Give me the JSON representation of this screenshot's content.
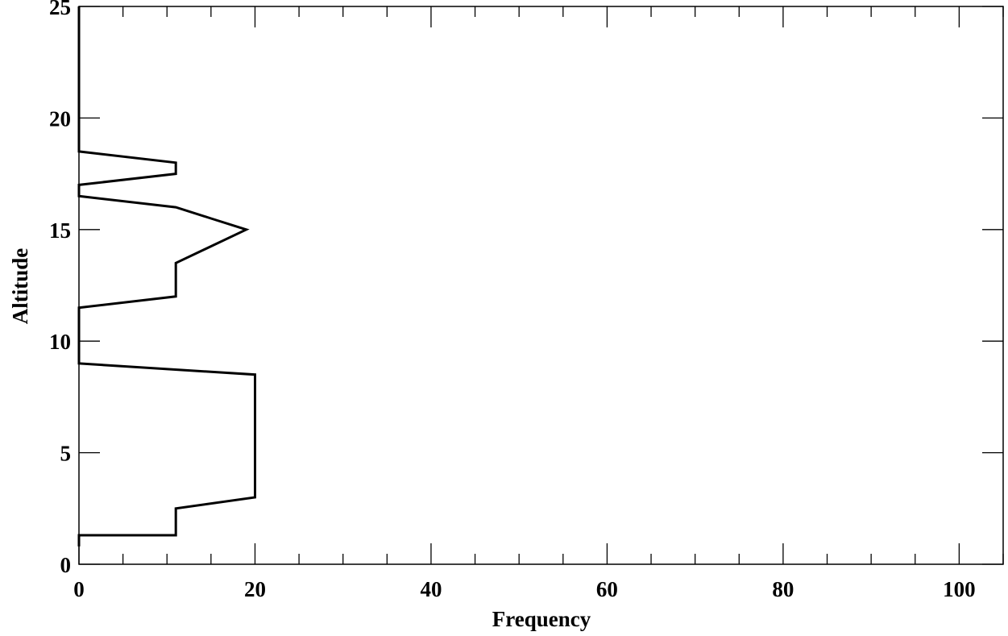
{
  "chart_data": {
    "type": "line",
    "title": "",
    "xlabel": "Frequency",
    "ylabel": "Altitude",
    "xlim": [
      0,
      105
    ],
    "ylim": [
      0,
      25
    ],
    "x_ticks": [
      0,
      20,
      40,
      60,
      80,
      100
    ],
    "y_ticks": [
      0,
      5,
      10,
      15,
      20,
      25
    ],
    "x_tick_labels": [
      "0",
      "20",
      "40",
      "60",
      "80",
      "100"
    ],
    "y_tick_labels": [
      "0",
      "5",
      "10",
      "15",
      "20",
      "25"
    ],
    "grid": false,
    "legend": "none",
    "line_color": "#000000",
    "series": [
      {
        "x": [
          0,
          0,
          11,
          11,
          20,
          20,
          0,
          0,
          11,
          11,
          19,
          15,
          11,
          0,
          0,
          11,
          11,
          0,
          0
        ],
        "y": [
          0.8,
          1.3,
          1.3,
          2.5,
          3,
          8.5,
          9,
          11.5,
          12,
          13.5,
          15,
          15.5,
          16,
          16.5,
          17,
          17.5,
          18,
          18.5,
          25
        ]
      }
    ]
  }
}
